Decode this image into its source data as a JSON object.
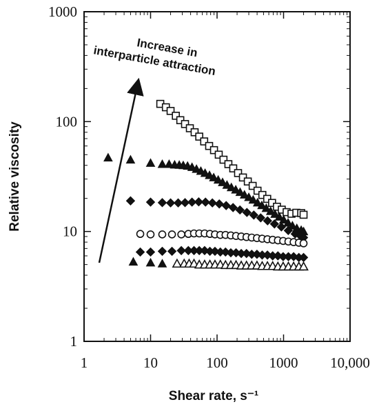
{
  "chart_data": {
    "type": "scatter",
    "title": "",
    "xlabel": "Shear rate, s⁻¹",
    "ylabel": "Relative viscosity",
    "x_scale": "log",
    "y_scale": "log",
    "xlim": [
      1,
      10000
    ],
    "ylim": [
      1,
      1000
    ],
    "x_ticks": [
      1,
      10,
      100,
      1000,
      10000
    ],
    "x_tick_labels": [
      "1",
      "10",
      "100",
      "1000",
      "10,000"
    ],
    "y_ticks": [
      1,
      10,
      100,
      1000
    ],
    "y_tick_labels": [
      "1",
      "10",
      "100",
      "1000"
    ],
    "grid": false,
    "legend": "none",
    "annotation": {
      "lines": [
        "Increase in",
        "interparticle attraction"
      ]
    },
    "series": [
      {
        "marker": "open-square",
        "points": [
          [
            14,
            145
          ],
          [
            17,
            135
          ],
          [
            20,
            125
          ],
          [
            24,
            113
          ],
          [
            28,
            103
          ],
          [
            33,
            95
          ],
          [
            39,
            87
          ],
          [
            46,
            80
          ],
          [
            54,
            73
          ],
          [
            64,
            66
          ],
          [
            76,
            60
          ],
          [
            90,
            55
          ],
          [
            106,
            50
          ],
          [
            125,
            45
          ],
          [
            148,
            41
          ],
          [
            175,
            37.5
          ],
          [
            207,
            34
          ],
          [
            245,
            31
          ],
          [
            290,
            28.5
          ],
          [
            343,
            26
          ],
          [
            406,
            23.5
          ],
          [
            480,
            21.5
          ],
          [
            568,
            19.8
          ],
          [
            672,
            18.2
          ],
          [
            795,
            16.8
          ],
          [
            940,
            15.8
          ],
          [
            1112,
            15
          ],
          [
            1316,
            14.5
          ],
          [
            1557,
            14.8
          ],
          [
            1842,
            14.7
          ],
          [
            2000,
            14.2
          ]
        ]
      },
      {
        "marker": "filled-triangle",
        "points": [
          [
            2.3,
            47
          ],
          [
            5,
            45
          ],
          [
            10,
            42
          ],
          [
            15,
            41
          ],
          [
            19,
            41
          ],
          [
            23,
            40.5
          ],
          [
            27,
            40.3
          ],
          [
            31,
            40
          ],
          [
            36,
            39.5
          ],
          [
            42,
            38.5
          ],
          [
            49,
            37
          ],
          [
            57,
            35.5
          ],
          [
            66,
            34
          ],
          [
            77,
            32.5
          ],
          [
            89,
            31
          ],
          [
            104,
            29.5
          ],
          [
            121,
            28
          ],
          [
            141,
            26.5
          ],
          [
            164,
            25.2
          ],
          [
            191,
            24
          ],
          [
            222,
            22.8
          ],
          [
            258,
            21.6
          ],
          [
            300,
            20.5
          ],
          [
            349,
            19.4
          ],
          [
            406,
            18.3
          ],
          [
            472,
            17.3
          ],
          [
            549,
            16.3
          ],
          [
            639,
            15.3
          ],
          [
            743,
            14.4
          ],
          [
            864,
            13.6
          ],
          [
            1005,
            12.8
          ],
          [
            1169,
            12
          ],
          [
            1360,
            11.3
          ],
          [
            1582,
            10.7
          ],
          [
            1840,
            10.3
          ],
          [
            2000,
            10
          ]
        ]
      },
      {
        "marker": "filled-diamond",
        "points": [
          [
            5,
            19
          ],
          [
            10,
            18.5
          ],
          [
            15,
            18.3
          ],
          [
            20,
            18.2
          ],
          [
            26,
            18.2
          ],
          [
            33,
            18.3
          ],
          [
            42,
            18.5
          ],
          [
            53,
            18.6
          ],
          [
            67,
            18.5
          ],
          [
            85,
            18.2
          ],
          [
            108,
            17.8
          ],
          [
            137,
            17.2
          ],
          [
            174,
            16.5
          ],
          [
            221,
            15.7
          ],
          [
            281,
            14.9
          ],
          [
            357,
            14.1
          ],
          [
            453,
            13.3
          ],
          [
            575,
            12.5
          ],
          [
            730,
            11.7
          ],
          [
            927,
            11
          ],
          [
            1177,
            10.2
          ],
          [
            1495,
            9.5
          ],
          [
            1800,
            9.1
          ],
          [
            2000,
            8.8
          ]
        ]
      },
      {
        "marker": "open-circle",
        "points": [
          [
            7,
            9.5
          ],
          [
            10,
            9.4
          ],
          [
            15,
            9.4
          ],
          [
            21,
            9.4
          ],
          [
            29,
            9.4
          ],
          [
            37,
            9.5
          ],
          [
            45,
            9.6
          ],
          [
            54,
            9.6
          ],
          [
            65,
            9.6
          ],
          [
            78,
            9.5
          ],
          [
            93,
            9.4
          ],
          [
            112,
            9.3
          ],
          [
            134,
            9.3
          ],
          [
            161,
            9.2
          ],
          [
            193,
            9.1
          ],
          [
            231,
            9
          ],
          [
            277,
            8.9
          ],
          [
            332,
            8.8
          ],
          [
            398,
            8.7
          ],
          [
            477,
            8.6
          ],
          [
            572,
            8.5
          ],
          [
            686,
            8.4
          ],
          [
            822,
            8.3
          ],
          [
            986,
            8.2
          ],
          [
            1182,
            8.1
          ],
          [
            1417,
            8
          ],
          [
            1699,
            7.9
          ],
          [
            2000,
            7.8
          ]
        ]
      },
      {
        "marker": "filled-diamond",
        "points": [
          [
            7,
            6.5
          ],
          [
            10,
            6.5
          ],
          [
            15,
            6.6
          ],
          [
            21,
            6.6
          ],
          [
            29,
            6.7
          ],
          [
            37,
            6.7
          ],
          [
            45,
            6.7
          ],
          [
            54,
            6.7
          ],
          [
            65,
            6.7
          ],
          [
            78,
            6.6
          ],
          [
            93,
            6.6
          ],
          [
            112,
            6.5
          ],
          [
            134,
            6.5
          ],
          [
            161,
            6.4
          ],
          [
            193,
            6.4
          ],
          [
            231,
            6.3
          ],
          [
            277,
            6.3
          ],
          [
            332,
            6.2
          ],
          [
            398,
            6.2
          ],
          [
            477,
            6.1
          ],
          [
            572,
            6.1
          ],
          [
            686,
            6
          ],
          [
            822,
            6
          ],
          [
            986,
            5.9
          ],
          [
            1182,
            5.9
          ],
          [
            1417,
            5.9
          ],
          [
            1699,
            5.8
          ],
          [
            2000,
            5.8
          ]
        ]
      },
      {
        "marker": "filled-triangle",
        "points": [
          [
            5.5,
            5.3
          ],
          [
            10,
            5.2
          ],
          [
            15,
            5.1
          ]
        ]
      },
      {
        "marker": "open-triangle",
        "points": [
          [
            25,
            5.1
          ],
          [
            32,
            5.1
          ],
          [
            38,
            5.1
          ],
          [
            45,
            5.1
          ],
          [
            54,
            5
          ],
          [
            65,
            5
          ],
          [
            78,
            5
          ],
          [
            93,
            5
          ],
          [
            112,
            5
          ],
          [
            134,
            4.95
          ],
          [
            161,
            4.95
          ],
          [
            193,
            4.95
          ],
          [
            231,
            4.9
          ],
          [
            277,
            4.9
          ],
          [
            332,
            4.9
          ],
          [
            398,
            4.9
          ],
          [
            477,
            4.85
          ],
          [
            572,
            4.85
          ],
          [
            686,
            4.85
          ],
          [
            822,
            4.8
          ],
          [
            986,
            4.8
          ],
          [
            1182,
            4.8
          ],
          [
            1417,
            4.8
          ],
          [
            1699,
            4.8
          ],
          [
            2000,
            4.8
          ]
        ]
      }
    ]
  }
}
